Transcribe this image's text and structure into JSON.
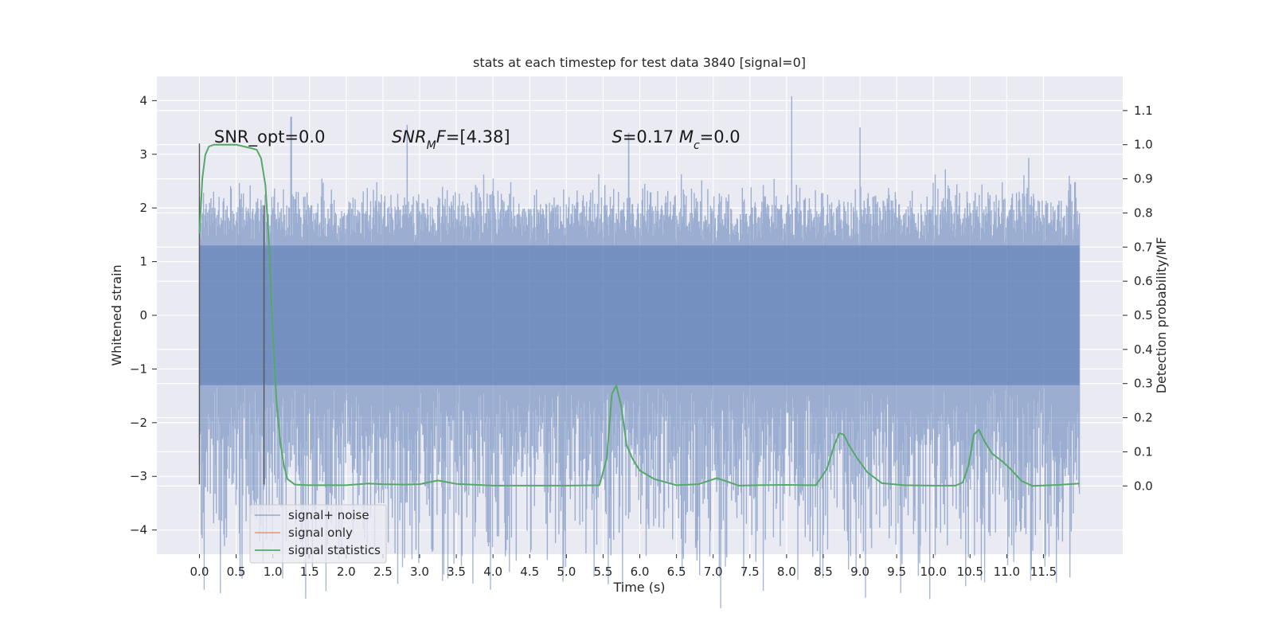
{
  "chart_data": {
    "type": "line",
    "title": "stats at each timestep for test data 3840 [signal=0]",
    "xlabel": "Time (s)",
    "ylabel": "Whitened strain",
    "ylabel_right": "Detection probability/MF",
    "xlim": [
      -0.58,
      12.58
    ],
    "ylim": [
      -4.45,
      4.45
    ],
    "ylim_right": [
      -0.2,
      1.2
    ],
    "grid": true,
    "legend_placement": "lower-left",
    "x_ticks": [
      "0.0",
      "0.5",
      "1.0",
      "1.5",
      "2.0",
      "2.5",
      "3.0",
      "3.5",
      "4.0",
      "4.5",
      "5.0",
      "5.5",
      "6.0",
      "6.5",
      "7.0",
      "7.5",
      "8.0",
      "8.5",
      "9.0",
      "9.5",
      "10.0",
      "10.5",
      "11.0",
      "11.5"
    ],
    "x_tick_values": [
      0,
      0.5,
      1,
      1.5,
      2,
      2.5,
      3,
      3.5,
      4,
      4.5,
      5,
      5.5,
      6,
      6.5,
      7,
      7.5,
      8,
      8.5,
      9,
      9.5,
      10,
      10.5,
      11,
      11.5
    ],
    "y_ticks": [
      "−4",
      "−3",
      "−2",
      "−1",
      "0",
      "1",
      "2",
      "3",
      "4"
    ],
    "y_tick_values": [
      -4,
      -3,
      -2,
      -1,
      0,
      1,
      2,
      3,
      4
    ],
    "y_right_ticks": [
      "0.0",
      "0.1",
      "0.2",
      "0.3",
      "0.4",
      "0.5",
      "0.6",
      "0.7",
      "0.8",
      "0.9",
      "1.0",
      "1.1"
    ],
    "y_right_tick_values": [
      0,
      0.1,
      0.2,
      0.3,
      0.4,
      0.5,
      0.6,
      0.7,
      0.8,
      0.9,
      1.0,
      1.1
    ],
    "vertical_markers": [
      {
        "x": 0.0,
        "y0": -3.15,
        "y1": 3.2
      },
      {
        "x": 0.88,
        "y0": -3.15,
        "y1": 2.05
      }
    ],
    "annotations": [
      {
        "parts": [
          {
            "t": "SNR_opt=0.0"
          }
        ],
        "x": 0.2,
        "y": 3.22
      },
      {
        "parts": [
          {
            "t": "SNR",
            "i": true
          },
          {
            "t": "M",
            "i": true,
            "sub": true
          },
          {
            "t": "F",
            "i": true
          },
          {
            "t": "=[4.38]"
          }
        ],
        "x": 2.62,
        "y": 3.22
      },
      {
        "parts": [
          {
            "t": "S",
            "i": true
          },
          {
            "t": "=0.17   "
          },
          {
            "t": "M",
            "i": true
          },
          {
            "t": "c",
            "i": true,
            "sub": true
          },
          {
            "t": "=0.0"
          }
        ],
        "x": 5.62,
        "y": 3.22
      }
    ],
    "series": [
      {
        "name": "signal+ noise",
        "color": "#4c72b0",
        "alpha": 0.5,
        "axis": "left",
        "style": "noise",
        "x_range": [
          0,
          11.99
        ],
        "core_band": [
          -1.3,
          1.3
        ],
        "typical_max": 2.3,
        "typical_min": -2.4,
        "notable_peaks": [
          [
            1.25,
            3.7
          ],
          [
            2.83,
            3.55
          ],
          [
            5.85,
            3.4
          ],
          [
            8.07,
            4.08
          ],
          [
            9.0,
            3.5
          ],
          [
            11.3,
            2.93
          ],
          [
            11.93,
            2.48
          ]
        ],
        "notable_troughs": [
          [
            0.08,
            -3.2
          ],
          [
            1.78,
            -3.3
          ],
          [
            4.78,
            -3.68
          ],
          [
            5.72,
            -4.05
          ],
          [
            7.25,
            -3.45
          ],
          [
            9.35,
            -3.55
          ],
          [
            9.75,
            -3.83
          ],
          [
            10.95,
            -3.2
          ],
          [
            11.3,
            -3.35
          ]
        ]
      },
      {
        "name": "signal only",
        "color": "#dd8452",
        "axis": "left",
        "x": [],
        "y": []
      },
      {
        "name": "signal statistics",
        "color": "#55a868",
        "axis": "right",
        "x": [
          0.0,
          0.04,
          0.08,
          0.13,
          0.2,
          0.3,
          0.4,
          0.5,
          0.6,
          0.7,
          0.78,
          0.84,
          0.9,
          0.95,
          1.0,
          1.05,
          1.1,
          1.15,
          1.2,
          1.3,
          1.5,
          2.0,
          2.3,
          2.5,
          2.8,
          3.0,
          3.25,
          3.5,
          4.0,
          4.5,
          5.0,
          5.45,
          5.55,
          5.62,
          5.68,
          5.75,
          5.82,
          5.9,
          6.0,
          6.2,
          6.5,
          6.8,
          7.05,
          7.2,
          7.35,
          7.6,
          8.0,
          8.4,
          8.55,
          8.65,
          8.72,
          8.78,
          8.85,
          8.95,
          9.1,
          9.3,
          9.6,
          10.0,
          10.3,
          10.4,
          10.48,
          10.55,
          10.62,
          10.7,
          10.8,
          10.95,
          11.05,
          11.2,
          11.35,
          11.7,
          11.99
        ],
        "y": [
          0.74,
          0.9,
          0.97,
          0.995,
          1.0,
          1.0,
          1.0,
          1.0,
          0.995,
          0.99,
          0.985,
          0.96,
          0.88,
          0.7,
          0.45,
          0.25,
          0.13,
          0.06,
          0.02,
          0.004,
          0.002,
          0.002,
          0.007,
          0.005,
          0.004,
          0.005,
          0.016,
          0.006,
          0.001,
          0.001,
          0.001,
          0.002,
          0.08,
          0.27,
          0.295,
          0.23,
          0.12,
          0.08,
          0.045,
          0.02,
          0.002,
          0.005,
          0.023,
          0.012,
          0.001,
          0.002,
          0.003,
          0.002,
          0.05,
          0.12,
          0.155,
          0.15,
          0.12,
          0.085,
          0.04,
          0.008,
          0.002,
          0.001,
          0.001,
          0.01,
          0.06,
          0.15,
          0.165,
          0.13,
          0.095,
          0.07,
          0.05,
          0.015,
          0.0,
          0.003,
          0.007
        ]
      }
    ]
  }
}
